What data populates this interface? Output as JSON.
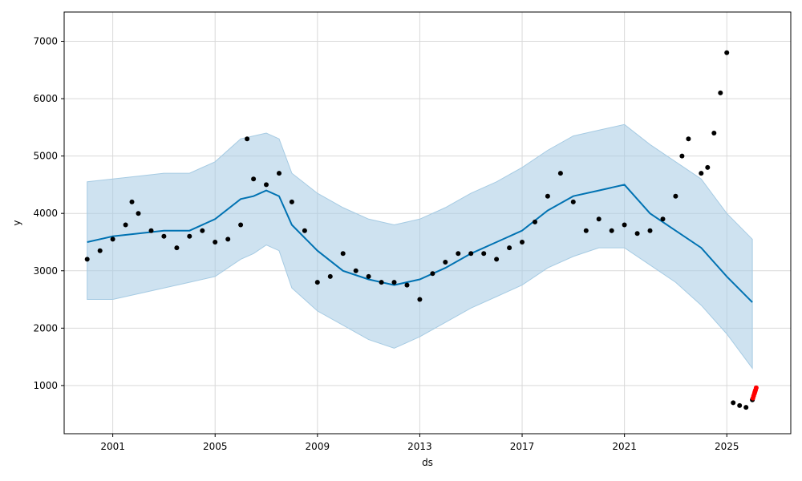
{
  "chart_data": {
    "type": "line",
    "title": "",
    "xlabel": "ds",
    "ylabel": "y",
    "x_ticks": [
      "2001",
      "2005",
      "2009",
      "2013",
      "2017",
      "2021",
      "2025"
    ],
    "y_ticks": [
      1000,
      2000,
      3000,
      4000,
      5000,
      6000,
      7000
    ],
    "xlim": [
      1999.1,
      2027.5
    ],
    "ylim": [
      160,
      7510
    ],
    "grid": true,
    "colors": {
      "forecast_line": "#0072B2",
      "uncertainty_band": "#A6CBE3",
      "observed_points": "#000000",
      "highlighted_points": "#FF0000"
    },
    "series": [
      {
        "kind": "uncertainty_band",
        "x": [
          2000.0,
          2001.0,
          2002.0,
          2003.0,
          2004.0,
          2005.0,
          2006.0,
          2006.5,
          2007.0,
          2007.5,
          2008.0,
          2009.0,
          2010.0,
          2011.0,
          2012.0,
          2013.0,
          2014.0,
          2015.0,
          2016.0,
          2017.0,
          2018.0,
          2019.0,
          2020.0,
          2021.0,
          2022.0,
          2023.0,
          2024.0,
          2025.0,
          2026.0
        ],
        "upper": [
          4550,
          4600,
          4650,
          4700,
          4700,
          4900,
          5300,
          5350,
          5400,
          5300,
          4700,
          4350,
          4100,
          3900,
          3800,
          3900,
          4100,
          4350,
          4550,
          4800,
          5100,
          5350,
          5450,
          5550,
          5200,
          4900,
          4600,
          4000,
          3550
        ],
        "lower": [
          2500,
          2500,
          2600,
          2700,
          2800,
          2900,
          3200,
          3300,
          3450,
          3350,
          2700,
          2300,
          2050,
          1800,
          1650,
          1850,
          2100,
          2350,
          2550,
          2750,
          3050,
          3250,
          3400,
          3400,
          3100,
          2800,
          2400,
          1900,
          1300
        ]
      },
      {
        "kind": "forecast",
        "x": [
          2000.0,
          2001.0,
          2002.0,
          2003.0,
          2004.0,
          2005.0,
          2006.0,
          2006.5,
          2007.0,
          2007.5,
          2008.0,
          2009.0,
          2010.0,
          2011.0,
          2012.0,
          2013.0,
          2014.0,
          2015.0,
          2016.0,
          2017.0,
          2018.0,
          2019.0,
          2020.0,
          2021.0,
          2022.0,
          2023.0,
          2024.0,
          2025.0,
          2026.0
        ],
        "y": [
          3500,
          3600,
          3650,
          3700,
          3700,
          3900,
          4250,
          4300,
          4400,
          4300,
          3800,
          3350,
          3000,
          2850,
          2750,
          2850,
          3050,
          3300,
          3500,
          3700,
          4050,
          4300,
          4400,
          4500,
          4000,
          3700,
          3400,
          2900,
          2450
        ]
      },
      {
        "kind": "observed",
        "x": [
          2000.0,
          2000.5,
          2001.0,
          2001.5,
          2001.75,
          2002.0,
          2002.5,
          2003.0,
          2003.5,
          2004.0,
          2004.5,
          2005.0,
          2005.5,
          2006.0,
          2006.25,
          2006.5,
          2007.0,
          2007.5,
          2008.0,
          2008.5,
          2009.0,
          2009.5,
          2010.0,
          2010.5,
          2011.0,
          2011.5,
          2012.0,
          2012.5,
          2013.0,
          2013.5,
          2014.0,
          2014.5,
          2015.0,
          2015.5,
          2016.0,
          2016.5,
          2017.0,
          2017.5,
          2018.0,
          2018.5,
          2019.0,
          2019.5,
          2020.0,
          2020.5,
          2021.0,
          2021.5,
          2022.0,
          2022.5,
          2023.0,
          2023.25,
          2023.5,
          2024.0,
          2024.25,
          2024.5,
          2024.75,
          2025.0,
          2025.25,
          2025.5,
          2025.75,
          2026.0
        ],
        "y": [
          3200,
          3350,
          3550,
          3800,
          4200,
          4000,
          3700,
          3600,
          3400,
          3600,
          3700,
          3500,
          3550,
          3800,
          5300,
          4600,
          4500,
          4700,
          4200,
          3700,
          2800,
          2900,
          3300,
          3000,
          2900,
          2800,
          2800,
          2750,
          2500,
          2950,
          3150,
          3300,
          3300,
          3300,
          3200,
          3400,
          3500,
          3850,
          4300,
          4700,
          4200,
          3700,
          3900,
          3700,
          3800,
          3650,
          3700,
          3900,
          4300,
          5000,
          5300,
          4700,
          4800,
          5400,
          6100,
          6800,
          700,
          650,
          620,
          750
        ]
      },
      {
        "kind": "highlighted",
        "x": [
          2026.02,
          2026.05,
          2026.08,
          2026.1,
          2026.12,
          2026.15
        ],
        "y": [
          780,
          820,
          860,
          890,
          920,
          960
        ]
      }
    ]
  }
}
